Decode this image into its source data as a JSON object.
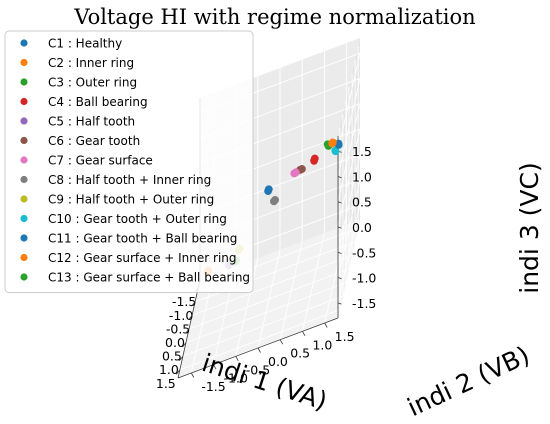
{
  "chart_data": {
    "type": "scatter",
    "title": "Voltage HI with regime normalization",
    "xlabel": "indi 1 (VA)",
    "ylabel": "indi 2 (VB)",
    "zlabel": "indi 3 (VC)",
    "xlim": [
      -1.8,
      1.8
    ],
    "ylim": [
      -1.8,
      1.8
    ],
    "zlim": [
      -1.8,
      1.8
    ],
    "xticks": [
      "-1.5",
      "-1.0",
      "-0.5",
      "0.0",
      "0.5",
      "1.0",
      "1.5"
    ],
    "yticks": [
      "-1.5",
      "-1.0",
      "-0.5",
      "0.0",
      "0.5",
      "1.0",
      "1.5"
    ],
    "zticks": [
      "-1.5",
      "-1.0",
      "-0.5",
      "0.0",
      "0.5",
      "1.0",
      "1.5"
    ],
    "grid": true,
    "legend_position": "upper-left",
    "series": [
      {
        "name": "C1 : Healthy",
        "color": "#1f77b4",
        "points": [
          [
            -1.3,
            -0.2,
            -0.3
          ],
          [
            -1.28,
            -0.18,
            -0.26
          ]
        ]
      },
      {
        "name": "C2 : Inner ring",
        "color": "#ff7f0e",
        "points": [
          [
            -1.6,
            -1.6,
            -1.6
          ],
          [
            -1.6,
            -1.58,
            -1.58
          ]
        ]
      },
      {
        "name": "C3 : Outer ring",
        "color": "#2ca02c",
        "points": [
          [
            1.55,
            1.55,
            1.55
          ],
          [
            1.53,
            1.53,
            1.58
          ]
        ]
      },
      {
        "name": "C4 : Ball bearing",
        "color": "#d62728",
        "points": [
          [
            -0.1,
            1.0,
            0.55
          ],
          [
            -0.08,
            1.02,
            0.6
          ]
        ]
      },
      {
        "name": "C5 : Half tooth",
        "color": "#9467bd",
        "points": [
          [
            -1.05,
            -1.05,
            -1.35
          ],
          [
            -1.0,
            -1.0,
            -1.3
          ],
          [
            -0.95,
            -0.95,
            -1.27
          ]
        ]
      },
      {
        "name": "C6 : Gear tooth",
        "color": "#8c564b",
        "points": [
          [
            -0.35,
            0.65,
            0.35
          ],
          [
            -0.3,
            0.7,
            0.38
          ]
        ]
      },
      {
        "name": "C7 : Gear surface",
        "color": "#e377c2",
        "points": [
          [
            -0.5,
            0.5,
            0.25
          ],
          [
            -0.46,
            0.54,
            0.28
          ]
        ]
      },
      {
        "name": "C8 : Half tooth + Inner ring",
        "color": "#7f7f7f",
        "points": [
          [
            -0.8,
            0.0,
            -0.3
          ],
          [
            -0.78,
            0.03,
            -0.27
          ]
        ]
      },
      {
        "name": "C9 : Half tooth + Outer ring",
        "color": "#bcbd22",
        "points": [
          [
            -0.8,
            -0.8,
            -1.0
          ],
          [
            -0.76,
            -0.76,
            -0.96
          ]
        ]
      },
      {
        "name": "C10 : Gear tooth + Outer ring",
        "color": "#17becf",
        "points": [
          [
            0.75,
            1.6,
            1.0
          ],
          [
            0.78,
            1.6,
            1.03
          ]
        ]
      },
      {
        "name": "C11 : Gear tooth + Ball bearing",
        "color": "#1f77b4",
        "points": [
          [
            0.95,
            1.7,
            1.2
          ],
          [
            0.98,
            1.7,
            1.24
          ]
        ]
      },
      {
        "name": "C12 : Gear surface + Inner ring",
        "color": "#ff7f0e",
        "points": [
          [
            1.3,
            1.6,
            1.45
          ],
          [
            1.33,
            1.62,
            1.48
          ]
        ]
      },
      {
        "name": "C13 : Gear surface + Ball bearing",
        "color": "#2ca02c",
        "points": [
          [
            -0.9,
            -0.9,
            -1.25
          ],
          [
            -0.86,
            -0.86,
            -1.22
          ]
        ]
      }
    ]
  }
}
